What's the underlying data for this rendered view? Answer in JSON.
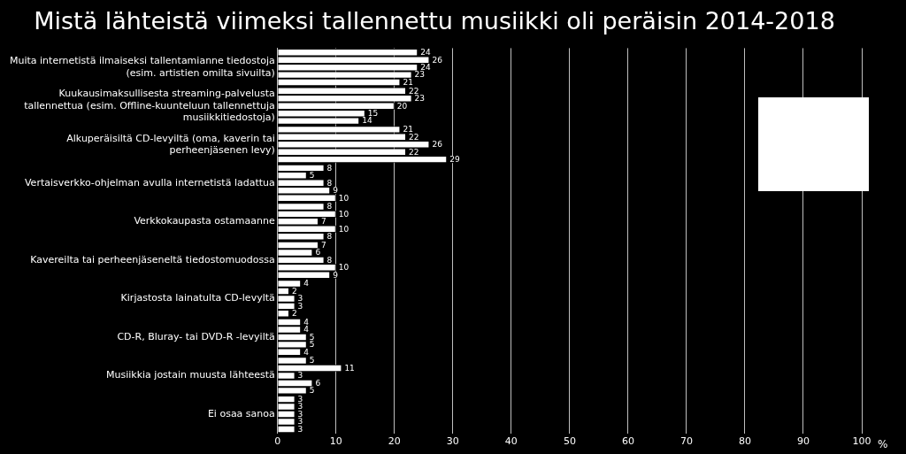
{
  "chart_data": {
    "type": "bar",
    "orientation": "horizontal",
    "title": "Mistä lähteistä viimeksi tallennettu musiikki oli peräisin 2014-2018",
    "categories": [
      "Muita internetistä ilmaiseksi tallentamianne tiedostoja (esim. artistien omilta sivuilta)",
      "Kuukausimaksullisesta streaming-palvelusta tallennettua (esim. Offline-kuunteluun tallennettuja musiikkitiedostoja)",
      "Alkuperäisiltä CD-levyiltä (oma, kaverin tai perheenjäsenen levy)",
      "Vertaisverkko-ohjelman avulla internetistä ladattua",
      "Verkkokaupasta ostamaanne",
      "Kavereilta tai perheenjäseneltä tiedostomuodossa",
      "Kirjastosta lainatulta CD-levyltä",
      "CD-R, Bluray- tai DVD-R -levyiltä",
      "Musiikkia jostain muusta lähteestä",
      "Ei osaa sanoa"
    ],
    "series": [
      {
        "color": "#ffffff",
        "values": [
          24,
          22,
          21,
          8,
          8,
          7,
          4,
          4,
          5,
          3
        ]
      },
      {
        "color": "#ffffff",
        "values": [
          26,
          23,
          22,
          5,
          10,
          6,
          2,
          4,
          11,
          3
        ]
      },
      {
        "color": "#ffffff",
        "values": [
          24,
          20,
          26,
          8,
          7,
          8,
          3,
          5,
          3,
          3
        ]
      },
      {
        "color": "#ffffff",
        "values": [
          23,
          15,
          22,
          9,
          10,
          10,
          3,
          5,
          6,
          3
        ]
      },
      {
        "color": "#ffffff",
        "values": [
          21,
          14,
          29,
          10,
          8,
          9,
          2,
          4,
          5,
          3
        ]
      }
    ],
    "xlabel": "%",
    "xlim": [
      0,
      100
    ],
    "xticks": [
      0,
      10,
      20,
      30,
      40,
      50,
      60,
      70,
      80,
      90,
      100
    ],
    "grid": "x",
    "data_labels": true,
    "legend": false
  }
}
